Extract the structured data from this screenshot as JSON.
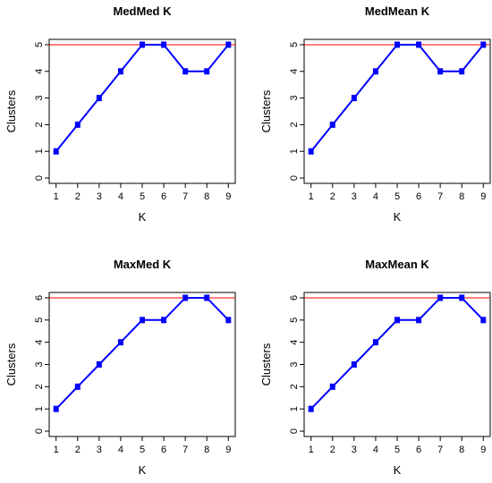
{
  "chart_data": [
    {
      "type": "line",
      "title": "MedMed K",
      "xlabel": "K",
      "ylabel": "Clusters",
      "x": [
        1,
        2,
        3,
        4,
        5,
        6,
        7,
        8,
        9
      ],
      "series": [
        {
          "values": [
            1,
            2,
            3,
            4,
            5,
            5,
            4,
            4,
            5
          ]
        }
      ],
      "reference_line": 5,
      "xlim": [
        1,
        9
      ],
      "ylim": [
        0,
        5
      ],
      "xticks": [
        "1",
        "2",
        "3",
        "4",
        "5",
        "6",
        "7",
        "8",
        "9"
      ],
      "yticks": [
        "0",
        "1",
        "2",
        "3",
        "4",
        "5"
      ],
      "grid": false
    },
    {
      "type": "line",
      "title": "MedMean K",
      "xlabel": "K",
      "ylabel": "Clusters",
      "x": [
        1,
        2,
        3,
        4,
        5,
        6,
        7,
        8,
        9
      ],
      "series": [
        {
          "values": [
            1,
            2,
            3,
            4,
            5,
            5,
            4,
            4,
            5
          ]
        }
      ],
      "reference_line": 5,
      "xlim": [
        1,
        9
      ],
      "ylim": [
        0,
        5
      ],
      "xticks": [
        "1",
        "2",
        "3",
        "4",
        "5",
        "6",
        "7",
        "8",
        "9"
      ],
      "yticks": [
        "0",
        "1",
        "2",
        "3",
        "4",
        "5"
      ],
      "grid": false
    },
    {
      "type": "line",
      "title": "MaxMed K",
      "xlabel": "K",
      "ylabel": "Clusters",
      "x": [
        1,
        2,
        3,
        4,
        5,
        6,
        7,
        8,
        9
      ],
      "series": [
        {
          "values": [
            1,
            2,
            3,
            4,
            5,
            5,
            6,
            6,
            5
          ]
        }
      ],
      "reference_line": 6,
      "xlim": [
        1,
        9
      ],
      "ylim": [
        0,
        6
      ],
      "xticks": [
        "1",
        "2",
        "3",
        "4",
        "5",
        "6",
        "7",
        "8",
        "9"
      ],
      "yticks": [
        "0",
        "1",
        "2",
        "3",
        "4",
        "5",
        "6"
      ],
      "grid": false
    },
    {
      "type": "line",
      "title": "MaxMean K",
      "xlabel": "K",
      "ylabel": "Clusters",
      "x": [
        1,
        2,
        3,
        4,
        5,
        6,
        7,
        8,
        9
      ],
      "series": [
        {
          "values": [
            1,
            2,
            3,
            4,
            5,
            5,
            6,
            6,
            5
          ]
        }
      ],
      "reference_line": 6,
      "xlim": [
        1,
        9
      ],
      "ylim": [
        0,
        6
      ],
      "xticks": [
        "1",
        "2",
        "3",
        "4",
        "5",
        "6",
        "7",
        "8",
        "9"
      ],
      "yticks": [
        "0",
        "1",
        "2",
        "3",
        "4",
        "5",
        "6"
      ],
      "grid": false
    }
  ],
  "colors": {
    "series": "#0000ff",
    "reference_line": "#ff0000",
    "axis": "#000000"
  }
}
